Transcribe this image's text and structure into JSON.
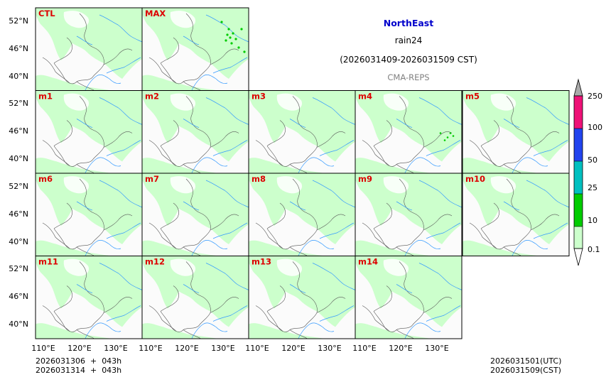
{
  "header": {
    "region": "NorthEast",
    "variable": "rain24",
    "period": "(2026031409-2026031509 CST)",
    "model": "CMA-REPS"
  },
  "panels": [
    {
      "label": "CTL",
      "rain": "light"
    },
    {
      "label": "MAX",
      "rain": "heavy"
    },
    {
      "label": "m1",
      "rain": "light"
    },
    {
      "label": "m2",
      "rain": "light"
    },
    {
      "label": "m3",
      "rain": "light"
    },
    {
      "label": "m4",
      "rain": "medium"
    },
    {
      "label": "m5",
      "rain": "light"
    },
    {
      "label": "m6",
      "rain": "light"
    },
    {
      "label": "m7",
      "rain": "light"
    },
    {
      "label": "m8",
      "rain": "light"
    },
    {
      "label": "m9",
      "rain": "light"
    },
    {
      "label": "m10",
      "rain": "light"
    },
    {
      "label": "m11",
      "rain": "light"
    },
    {
      "label": "m12",
      "rain": "light"
    },
    {
      "label": "m13",
      "rain": "light"
    },
    {
      "label": "m14",
      "rain": "light"
    }
  ],
  "axes": {
    "lat_labels": [
      "52°N",
      "46°N",
      "40°N"
    ],
    "lon_labels": [
      "110°E",
      "120°E",
      "130°E"
    ]
  },
  "colorbar": {
    "levels": [
      "0.1",
      "10",
      "25",
      "50",
      "100",
      "250"
    ],
    "colors": [
      "#ccffcc",
      "#00cc00",
      "#00c0c0",
      "#2244ee",
      "#ee1177",
      "#aaaaaa"
    ]
  },
  "footer": {
    "init_line1": "2026031306  +  043h",
    "init_line2": "2026031314  +  043h",
    "valid_utc": "2026031501(UTC)",
    "valid_cst": "2026031509(CST)"
  },
  "style": {
    "label_color": "#dd0000",
    "region_color": "#0000cc",
    "light_rain": "#ccffcc",
    "heavy_rain": "#00cc00",
    "river_color": "#3399ff",
    "border_color": "#555555"
  }
}
